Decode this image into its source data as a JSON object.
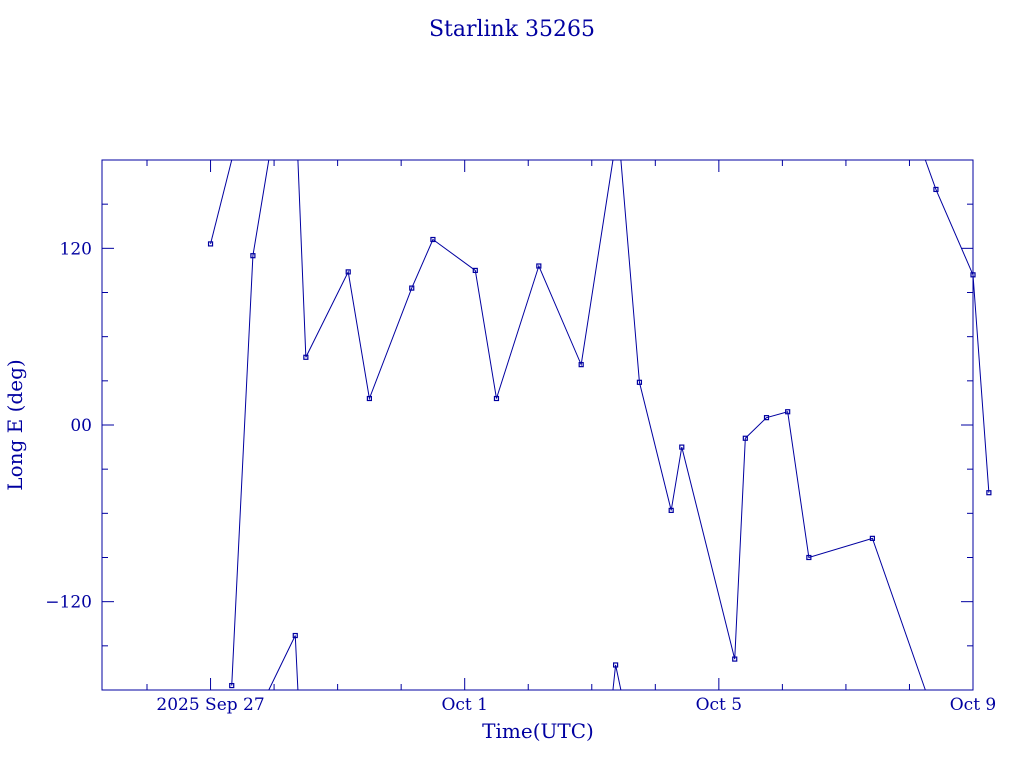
{
  "chart_data": {
    "type": "line",
    "title": "Starlink 35265",
    "xlabel": "Time(UTC)",
    "ylabel": "Long E (deg)",
    "x_tick_labels": [
      "2025 Sep 27",
      "Oct  1",
      "Oct  5",
      "Oct  9"
    ],
    "y_tick_labels": [
      "120",
      "00",
      "−120"
    ],
    "colors": {
      "foreground": "#0000a0",
      "background": "#ffffff"
    },
    "ylim": [
      -180,
      180
    ],
    "xlim": [
      "2025-09-25T07:00",
      "2025-10-09T00:00"
    ],
    "y_wraps_at": 180,
    "grid": false,
    "series": [
      {
        "points": [
          [
            "2025-09-27T00:00",
            123
          ],
          [
            "2025-09-27T08:00",
            180
          ],
          [
            "2025-09-27T08:00",
            -177
          ],
          [
            "2025-09-27T16:00",
            115
          ],
          [
            "2025-09-27T22:00",
            180
          ],
          [
            "2025-09-27T22:00",
            -180
          ],
          [
            "2025-09-28T08:00",
            -143
          ],
          [
            "2025-09-28T09:00",
            -180
          ],
          [
            "2025-09-28T09:00",
            180
          ],
          [
            "2025-09-28T12:00",
            46
          ],
          [
            "2025-09-29T04:00",
            104
          ],
          [
            "2025-09-29T12:00",
            18
          ],
          [
            "2025-09-30T04:00",
            93
          ],
          [
            "2025-09-30T12:00",
            126
          ],
          [
            "2025-10-01T04:00",
            105
          ],
          [
            "2025-10-01T12:00",
            18
          ],
          [
            "2025-10-02T04:00",
            108
          ],
          [
            "2025-10-02T20:00",
            41
          ],
          [
            "2025-10-03T08:00",
            180
          ],
          [
            "2025-10-03T08:00",
            -180
          ],
          [
            "2025-10-03T09:00",
            -163
          ],
          [
            "2025-10-03T11:00",
            -180
          ],
          [
            "2025-10-03T11:00",
            180
          ],
          [
            "2025-10-03T18:00",
            29
          ],
          [
            "2025-10-04T06:00",
            -58
          ],
          [
            "2025-10-04T10:00",
            -15
          ],
          [
            "2025-10-05T06:00",
            -159
          ],
          [
            "2025-10-05T10:00",
            -9
          ],
          [
            "2025-10-05T18:00",
            5
          ],
          [
            "2025-10-06T02:00",
            9
          ],
          [
            "2025-10-06T10:00",
            -90
          ],
          [
            "2025-10-07T10:00",
            -77
          ],
          [
            "2025-10-08T06:00",
            -180
          ],
          [
            "2025-10-08T06:00",
            180
          ],
          [
            "2025-10-08T10:00",
            160
          ],
          [
            "2025-10-09T00:00",
            102
          ],
          [
            "2025-10-09T06:00",
            -46
          ]
        ]
      }
    ]
  }
}
